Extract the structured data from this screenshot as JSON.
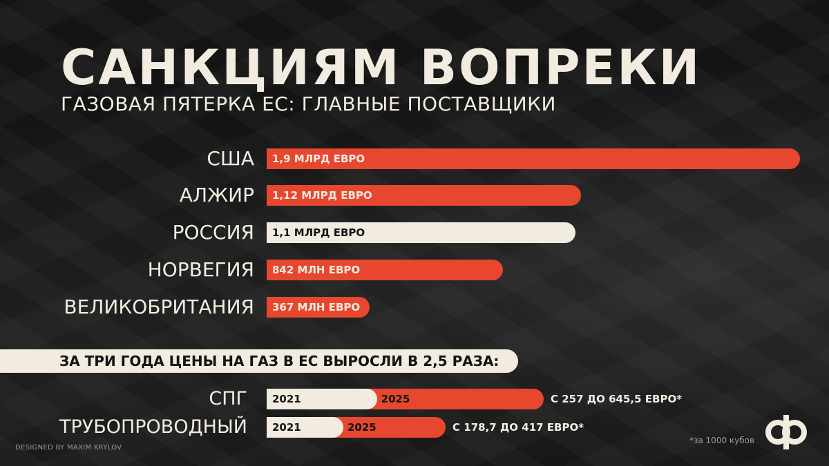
{
  "title": "САНКЦИЯМ ВОПРЕКИ",
  "subtitle": "ГАЗОВАЯ ПЯТЕРКА ЕС: ГЛАВНЫЕ ПОСТАВЩИКИ",
  "colors": {
    "accent": "#e8472f",
    "cream": "#f2ece0",
    "background": "#161616"
  },
  "chart_data": [
    {
      "type": "bar",
      "orientation": "horizontal",
      "categories": [
        "США",
        "АЛЖИР",
        "РОССИЯ",
        "НОРВЕГИЯ",
        "ВЕЛИКОБРИТАНИЯ"
      ],
      "values": [
        1.9,
        1.12,
        1.1,
        0.842,
        0.367
      ],
      "unit": "млрд евро",
      "data_labels": [
        "1,9 МЛРД ЕВРО",
        "1,12 МЛРД ЕВРО",
        "1,1 МЛРД ЕВРО",
        "842 МЛН ЕВРО",
        "367 МЛН ЕВРО"
      ],
      "highlight": "РОССИЯ"
    },
    {
      "type": "bar",
      "title": "ЗА ТРИ ГОДА ЦЕНЫ НА ГАЗ В ЕС ВЫРОСЛИ В 2,5 РАЗА:",
      "categories": [
        "СПГ",
        "ТРУБОПРОВОДНЫЙ"
      ],
      "series": [
        {
          "name": "2021",
          "values": [
            257,
            178.7
          ]
        },
        {
          "name": "2025",
          "values": [
            645.5,
            417
          ]
        }
      ],
      "notes": [
        "С 257 ДО 645,5 ЕВРО*",
        "С 178,7 ДО 417 ЕВРО*"
      ],
      "footnote": "*за 1000 кубов"
    }
  ],
  "credit": "DESIGNED BY MAXIM KRYLOV",
  "logo_icon": "ef-logo-icon"
}
